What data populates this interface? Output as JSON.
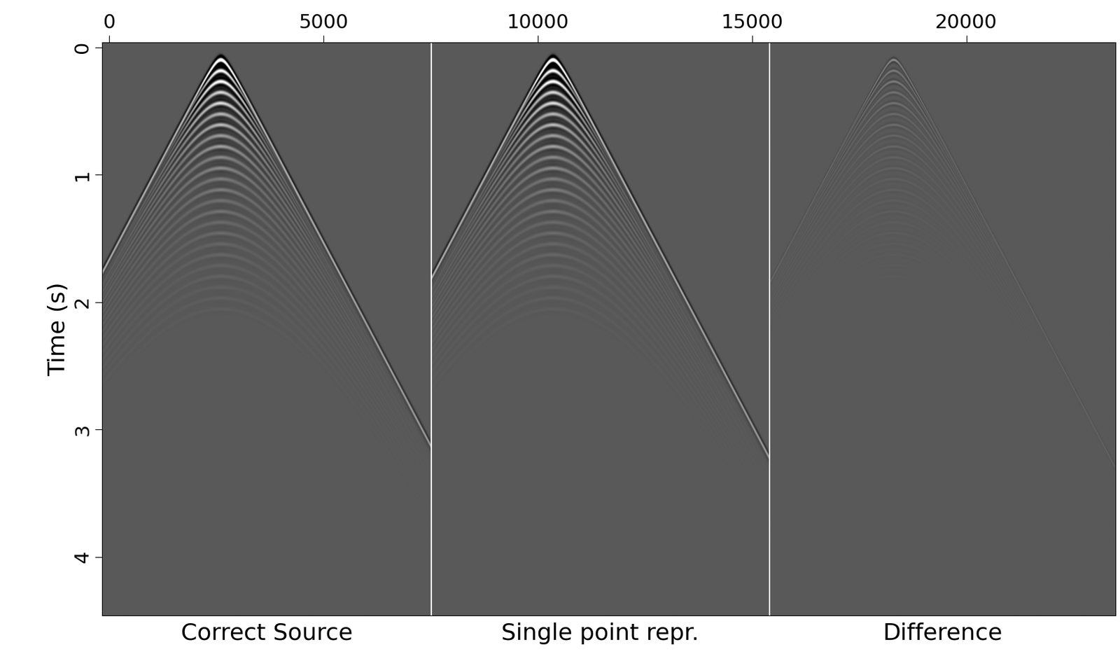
{
  "chart_data": {
    "type": "image",
    "ylabel": "Time (s)",
    "xlim": [
      -167,
      23480
    ],
    "ylim": [
      4.46,
      -0.04
    ],
    "xticks": [
      0,
      5000,
      10000,
      15000,
      20000
    ],
    "yticks": [
      0,
      1,
      2,
      3,
      4
    ],
    "panels": [
      {
        "label": "Correct Source",
        "xlim": [
          -167,
          7517
        ]
      },
      {
        "label": "Single point repr.",
        "xlim": [
          7517,
          15400
        ]
      },
      {
        "label": "Difference",
        "xlim": [
          15400,
          23480
        ]
      }
    ]
  }
}
